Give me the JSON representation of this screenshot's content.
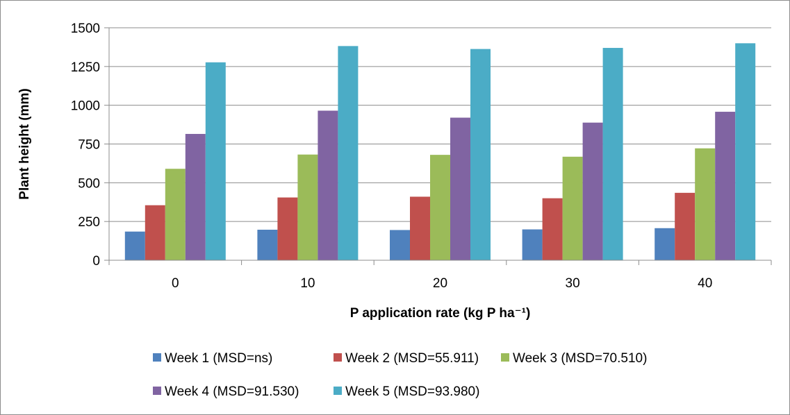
{
  "chart_data": {
    "type": "bar",
    "xlabel": "P application rate (kg P ha⁻¹)",
    "ylabel": "Plant height (mm)",
    "categories": [
      "0",
      "10",
      "20",
      "30",
      "40"
    ],
    "ylim": [
      0,
      1500
    ],
    "yticks": [
      0,
      250,
      500,
      750,
      1000,
      1250,
      1500
    ],
    "grid": true,
    "legend_position": "bottom",
    "series": [
      {
        "name": "Week 1 (MSD=ns)",
        "color": "#4f81bd",
        "values": [
          185,
          197,
          195,
          199,
          207
        ]
      },
      {
        "name": "Week 2 (MSD=55.911)",
        "color": "#c0504d",
        "values": [
          355,
          405,
          410,
          400,
          435
        ]
      },
      {
        "name": "Week 3 (MSD=70.510)",
        "color": "#9bbb59",
        "values": [
          590,
          682,
          680,
          668,
          722
        ]
      },
      {
        "name": "Week 4 (MSD=91.530)",
        "color": "#8064a2",
        "values": [
          815,
          965,
          920,
          888,
          958
        ]
      },
      {
        "name": "Week 5 (MSD=93.980)",
        "color": "#4bacc6",
        "values": [
          1277,
          1382,
          1363,
          1370,
          1400
        ]
      }
    ]
  }
}
